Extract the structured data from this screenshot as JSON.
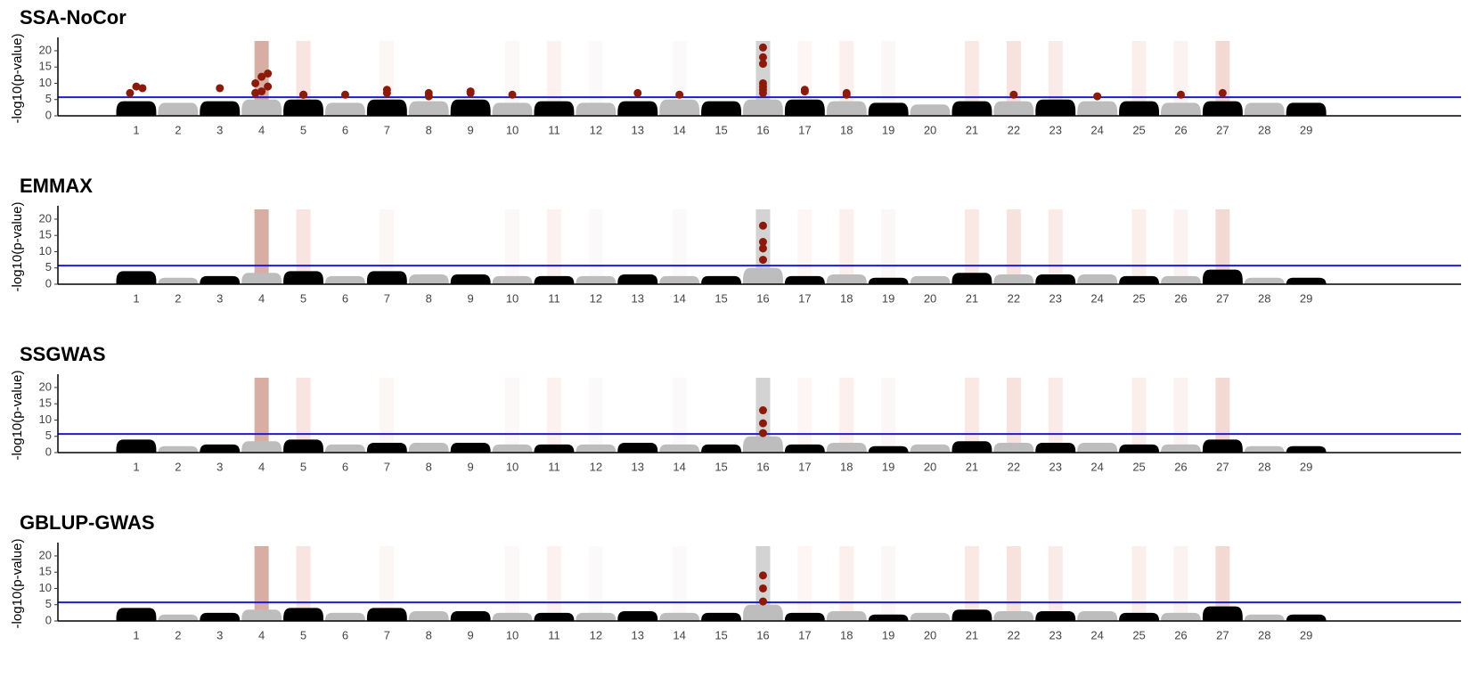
{
  "bands": [
    {
      "chromosome": "4",
      "color": "#d8ada3"
    },
    {
      "chromosome": "5",
      "color": "#f8e4e0"
    },
    {
      "chromosome": "7",
      "color": "#fcf6f5"
    },
    {
      "chromosome": "10",
      "color": "#fcf8f7"
    },
    {
      "chromosome": "11",
      "color": "#fdf1ef"
    },
    {
      "chromosome": "12",
      "color": "#fbf9f9"
    },
    {
      "chromosome": "14",
      "color": "#fbf9f9"
    },
    {
      "chromosome": "16",
      "color": "#d3d3d3"
    },
    {
      "chromosome": "17",
      "color": "#fdf6f5"
    },
    {
      "chromosome": "18",
      "color": "#fcefec"
    },
    {
      "chromosome": "19",
      "color": "#fbf7f6"
    },
    {
      "chromosome": "21",
      "color": "#fae8e4"
    },
    {
      "chromosome": "22",
      "color": "#f8e2de"
    },
    {
      "chromosome": "23",
      "color": "#faebe8"
    },
    {
      "chromosome": "25",
      "color": "#fbefec"
    },
    {
      "chromosome": "26",
      "color": "#fbf3f2"
    },
    {
      "chromosome": "27",
      "color": "#f3d9d4"
    }
  ],
  "chart_data": [
    {
      "type": "scatter",
      "title": "SSA-NoCor",
      "y_label": "-log10(p-value)",
      "categories": [
        "1",
        "2",
        "3",
        "4",
        "5",
        "6",
        "7",
        "8",
        "9",
        "10",
        "11",
        "12",
        "13",
        "14",
        "15",
        "16",
        "17",
        "18",
        "19",
        "20",
        "21",
        "22",
        "23",
        "24",
        "25",
        "26",
        "27",
        "28",
        "29"
      ],
      "values": [
        4.5,
        4,
        4.5,
        5,
        5,
        4,
        5,
        4.5,
        5,
        4,
        4.5,
        4,
        4.5,
        5,
        4.5,
        5,
        5,
        4.5,
        4,
        3.5,
        4.5,
        4.5,
        5,
        4.5,
        4.5,
        4,
        4.5,
        4,
        4
      ],
      "colors": [
        "#000000",
        "#bdbdbd"
      ],
      "point_color": "#8b1a0a",
      "significant": [
        {
          "chromosome": "1",
          "values": [
            7,
            9,
            8.5
          ]
        },
        {
          "chromosome": "3",
          "values": [
            8.5
          ]
        },
        {
          "chromosome": "4",
          "values": [
            7,
            7.5,
            9,
            10,
            12,
            13,
            7
          ]
        },
        {
          "chromosome": "5",
          "values": [
            6.5,
            6.5
          ]
        },
        {
          "chromosome": "6",
          "values": [
            6.5
          ]
        },
        {
          "chromosome": "7",
          "values": [
            8,
            7
          ]
        },
        {
          "chromosome": "8",
          "values": [
            7,
            6
          ]
        },
        {
          "chromosome": "9",
          "values": [
            7.5,
            7
          ]
        },
        {
          "chromosome": "10",
          "values": [
            6.5
          ]
        },
        {
          "chromosome": "13",
          "values": [
            7
          ]
        },
        {
          "chromosome": "14",
          "values": [
            6.5
          ]
        },
        {
          "chromosome": "16",
          "values": [
            21,
            18,
            16,
            10,
            9,
            8,
            7
          ]
        },
        {
          "chromosome": "17",
          "values": [
            8,
            7.5
          ]
        },
        {
          "chromosome": "18",
          "values": [
            7,
            6.5
          ]
        },
        {
          "chromosome": "22",
          "values": [
            6.5
          ]
        },
        {
          "chromosome": "24",
          "values": [
            6
          ]
        },
        {
          "chromosome": "26",
          "values": [
            6.5
          ]
        },
        {
          "chromosome": "27",
          "values": [
            7
          ]
        }
      ],
      "threshold": 5.7,
      "threshold_color": "#1c1cd6",
      "ylim": [
        0,
        23
      ],
      "yticks": [
        0,
        5,
        10,
        15,
        20
      ]
    },
    {
      "type": "scatter",
      "title": "EMMAX",
      "y_label": "-log10(p-value)",
      "categories": [
        "1",
        "2",
        "3",
        "4",
        "5",
        "6",
        "7",
        "8",
        "9",
        "10",
        "11",
        "12",
        "13",
        "14",
        "15",
        "16",
        "17",
        "18",
        "19",
        "20",
        "21",
        "22",
        "23",
        "24",
        "25",
        "26",
        "27",
        "28",
        "29"
      ],
      "values": [
        4,
        2,
        2.5,
        3.5,
        4,
        2.5,
        4,
        3,
        3,
        2.5,
        2.5,
        2.5,
        3,
        2.5,
        2.5,
        5,
        2.5,
        3,
        2,
        2.5,
        3.5,
        3,
        3,
        3,
        2.5,
        2.5,
        4.5,
        2,
        2
      ],
      "colors": [
        "#000000",
        "#bdbdbd"
      ],
      "point_color": "#8b1a0a",
      "significant": [
        {
          "chromosome": "16",
          "values": [
            18,
            13,
            11,
            7.5
          ]
        }
      ],
      "threshold": 5.7,
      "threshold_color": "#1c1cd6",
      "ylim": [
        0,
        23
      ],
      "yticks": [
        0,
        5,
        10,
        15,
        20
      ]
    },
    {
      "type": "scatter",
      "title": "SSGWAS",
      "y_label": "-log10(p-value)",
      "categories": [
        "1",
        "2",
        "3",
        "4",
        "5",
        "6",
        "7",
        "8",
        "9",
        "10",
        "11",
        "12",
        "13",
        "14",
        "15",
        "16",
        "17",
        "18",
        "19",
        "20",
        "21",
        "22",
        "23",
        "24",
        "25",
        "26",
        "27",
        "28",
        "29"
      ],
      "values": [
        4,
        2,
        2.5,
        3.5,
        4,
        2.5,
        3,
        3,
        3,
        2.5,
        2.5,
        2.5,
        3,
        2.5,
        2.5,
        5,
        2.5,
        3,
        2,
        2.5,
        3.5,
        3,
        3,
        3,
        2.5,
        2.5,
        4,
        2,
        2
      ],
      "colors": [
        "#000000",
        "#bdbdbd"
      ],
      "point_color": "#8b1a0a",
      "significant": [
        {
          "chromosome": "16",
          "values": [
            13,
            9,
            6
          ]
        }
      ],
      "threshold": 5.7,
      "threshold_color": "#1c1cd6",
      "ylim": [
        0,
        23
      ],
      "yticks": [
        0,
        5,
        10,
        15,
        20
      ]
    },
    {
      "type": "scatter",
      "title": "GBLUP-GWAS",
      "y_label": "-log10(p-value)",
      "categories": [
        "1",
        "2",
        "3",
        "4",
        "5",
        "6",
        "7",
        "8",
        "9",
        "10",
        "11",
        "12",
        "13",
        "14",
        "15",
        "16",
        "17",
        "18",
        "19",
        "20",
        "21",
        "22",
        "23",
        "24",
        "25",
        "26",
        "27",
        "28",
        "29"
      ],
      "values": [
        4,
        2,
        2.5,
        3.5,
        4,
        2.5,
        4,
        3,
        3,
        2.5,
        2.5,
        2.5,
        3,
        2.5,
        2.5,
        5,
        2.5,
        3,
        2,
        2.5,
        3.5,
        3,
        3,
        3,
        2.5,
        2.5,
        4.5,
        2,
        2
      ],
      "colors": [
        "#000000",
        "#bdbdbd"
      ],
      "point_color": "#8b1a0a",
      "significant": [
        {
          "chromosome": "16",
          "values": [
            14,
            10,
            6
          ]
        }
      ],
      "threshold": 5.7,
      "threshold_color": "#1c1cd6",
      "ylim": [
        0,
        23
      ],
      "yticks": [
        0,
        5,
        10,
        15,
        20
      ]
    }
  ]
}
